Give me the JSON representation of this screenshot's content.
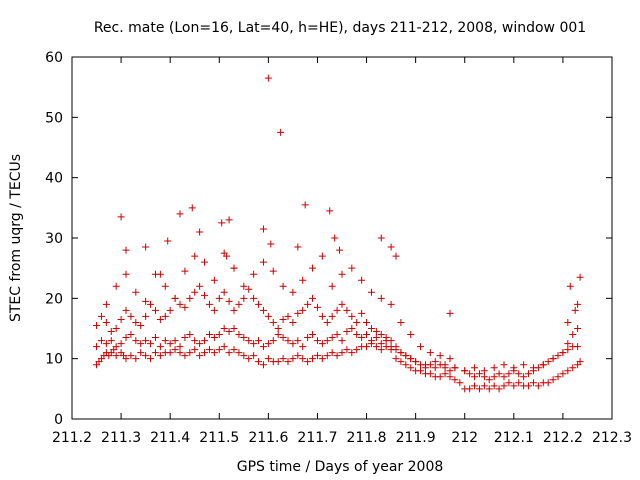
{
  "chart_data": {
    "type": "scatter",
    "title": "Rec. mate (Lon=16, Lat=40, h=HE), days 211-212, 2008, window 001",
    "xlabel": "GPS time / Days of year 2008",
    "ylabel": "STEC from uqrg / TECUs",
    "xlim": [
      211.2,
      212.3
    ],
    "ylim": [
      0,
      60
    ],
    "xticks": [
      "211.2",
      "211.3",
      "211.4",
      "211.5",
      "211.6",
      "211.7",
      "211.8",
      "211.9",
      "212",
      "212.1",
      "212.2",
      "212.3"
    ],
    "yticks": [
      "0",
      "10",
      "20",
      "30",
      "40",
      "50",
      "60"
    ],
    "grid": false,
    "marker": "plus",
    "color": "#cc0000",
    "series": [
      {
        "x": [
          211.25,
          211.255,
          211.26,
          211.265,
          211.27,
          211.275,
          211.28,
          211.285,
          211.29,
          211.3,
          211.305,
          211.31,
          211.32,
          211.33,
          211.34,
          211.35,
          211.36,
          211.37,
          211.38,
          211.39,
          211.4,
          211.41,
          211.42,
          211.43,
          211.44,
          211.45,
          211.46,
          211.47,
          211.48,
          211.49,
          211.5,
          211.51,
          211.52,
          211.53,
          211.54,
          211.55,
          211.56,
          211.57,
          211.58,
          211.59,
          211.6,
          211.61,
          211.62,
          211.63,
          211.64,
          211.65,
          211.66,
          211.67,
          211.68,
          211.69,
          211.7,
          211.71,
          211.72,
          211.73,
          211.74,
          211.75,
          211.76,
          211.77,
          211.78,
          211.79,
          211.8,
          211.81,
          211.82,
          211.83,
          211.84,
          211.85,
          211.86,
          211.87,
          211.88,
          211.89,
          211.9,
          211.91,
          211.92,
          211.93,
          211.94,
          211.95,
          211.96,
          211.97,
          211.98,
          211.99,
          212.0,
          212.01,
          212.02,
          212.03,
          212.04,
          212.05,
          212.06,
          212.07,
          212.08,
          212.09,
          212.1,
          212.11,
          212.12,
          212.13,
          212.14,
          212.15,
          212.16,
          212.17,
          212.18,
          212.19,
          212.2,
          212.21,
          212.22,
          212.23,
          212.235
        ],
        "y": [
          9,
          9.5,
          10,
          10.5,
          11,
          10.5,
          11,
          11.5,
          10.5,
          11,
          10.5,
          10,
          10.5,
          10,
          11,
          10.5,
          10,
          11,
          10.5,
          11,
          11,
          11.5,
          11,
          10.5,
          11,
          11.5,
          10.5,
          11,
          11.5,
          11,
          11.5,
          12,
          11,
          11.5,
          11,
          10.5,
          10,
          10.5,
          9.5,
          9,
          10,
          9.5,
          9.5,
          10,
          9.5,
          10,
          10.5,
          10,
          9.5,
          10,
          10.5,
          10,
          10.5,
          11,
          10.5,
          11,
          11.5,
          11,
          11.5,
          12,
          12,
          12.5,
          12,
          11.5,
          12,
          11.5,
          10,
          9.5,
          9,
          8.5,
          8,
          8,
          7.5,
          7.5,
          7,
          7,
          7.5,
          7,
          6.5,
          6,
          5,
          5,
          5.5,
          5,
          5.5,
          5,
          5.5,
          5,
          5.5,
          6,
          5.5,
          6,
          5.5,
          5.5,
          6,
          5.5,
          6,
          6,
          6.5,
          7,
          7.5,
          8,
          8.5,
          9,
          9.5
        ]
      },
      {
        "x": [
          211.25,
          211.26,
          211.27,
          211.28,
          211.29,
          211.3,
          211.31,
          211.32,
          211.33,
          211.34,
          211.35,
          211.36,
          211.37,
          211.38,
          211.39,
          211.4,
          211.41,
          211.42,
          211.43,
          211.44,
          211.45,
          211.46,
          211.47,
          211.48,
          211.49,
          211.5,
          211.51,
          211.52,
          211.53,
          211.54,
          211.55,
          211.56,
          211.57,
          211.58,
          211.59,
          211.6,
          211.61,
          211.62,
          211.63,
          211.64,
          211.65,
          211.66,
          211.67,
          211.68,
          211.69,
          211.7,
          211.71,
          211.72,
          211.73,
          211.74,
          211.75,
          211.76,
          211.77,
          211.78,
          211.79,
          211.8,
          211.81,
          211.82,
          211.83,
          211.84,
          211.85,
          211.86,
          211.87,
          211.88,
          211.89,
          211.9,
          211.91,
          211.92,
          211.93,
          211.94,
          211.95,
          211.96,
          211.97,
          211.98,
          212.0,
          212.01,
          212.02,
          212.03,
          212.04,
          212.05,
          212.06,
          212.07,
          212.08,
          212.09,
          212.1,
          212.11,
          212.12,
          212.13,
          212.14,
          212.15,
          212.16,
          212.17,
          212.18,
          212.19,
          212.2,
          212.21,
          212.22,
          212.23
        ],
        "y": [
          12,
          13,
          12.5,
          13,
          12,
          12.5,
          13.5,
          14,
          13,
          12.5,
          13,
          12.5,
          13.5,
          12,
          13,
          12.5,
          13,
          12,
          13.5,
          14,
          13,
          12.5,
          13,
          14,
          13.5,
          14,
          15,
          14.5,
          15,
          14,
          13.5,
          13,
          12.5,
          13,
          12,
          12.5,
          13,
          14,
          13.5,
          13,
          12.5,
          13,
          12,
          13.5,
          14,
          13,
          12.5,
          13,
          13.5,
          14,
          13,
          14.5,
          15,
          14,
          13.5,
          14,
          13,
          13.5,
          12.5,
          13,
          12,
          11.5,
          11,
          10.5,
          10,
          9.5,
          9,
          8.5,
          9,
          8.5,
          9,
          8.5,
          8,
          8.5,
          8,
          7.5,
          7,
          7.5,
          7,
          6.5,
          7,
          7.5,
          7,
          7.5,
          8,
          7.5,
          7,
          7.5,
          8,
          8.5,
          9,
          9.5,
          10,
          10.5,
          11,
          11.5,
          12,
          12
        ]
      },
      {
        "x": [
          211.25,
          211.26,
          211.27,
          211.28,
          211.29,
          211.3,
          211.31,
          211.32,
          211.33,
          211.34,
          211.35,
          211.36,
          211.37,
          211.38,
          211.39,
          211.4,
          211.41,
          211.42,
          211.43,
          211.44,
          211.45,
          211.46,
          211.47,
          211.48,
          211.49,
          211.5,
          211.51,
          211.52,
          211.53,
          211.54,
          211.55,
          211.56,
          211.57,
          211.58,
          211.59,
          211.6,
          211.61,
          211.62,
          211.63,
          211.64,
          211.65,
          211.66,
          211.67,
          211.68,
          211.69,
          211.7,
          211.71,
          211.72,
          211.73,
          211.74,
          211.75,
          211.76,
          211.77,
          211.78,
          211.79,
          211.8,
          211.81,
          211.82,
          211.83,
          211.84,
          211.85,
          211.86,
          211.87,
          211.88,
          211.89,
          211.9,
          211.92,
          211.94,
          211.96,
          211.98,
          212.0,
          212.02,
          212.04,
          212.06,
          212.08,
          212.1,
          212.12,
          212.14,
          212.16,
          212.18,
          212.2,
          212.21,
          212.22,
          212.23
        ],
        "y": [
          15.5,
          17,
          16,
          14.5,
          15,
          16.5,
          18,
          17,
          16,
          15.5,
          17,
          19,
          18,
          16.5,
          17,
          18,
          20,
          19,
          18.5,
          20,
          21,
          22,
          20.5,
          19,
          18,
          20,
          21,
          19.5,
          18,
          19,
          20,
          21.5,
          20,
          19,
          18,
          17,
          16,
          15,
          16.5,
          17,
          16,
          17.5,
          18,
          19,
          20,
          18.5,
          17,
          16,
          17,
          18,
          19,
          18,
          17,
          16,
          17.5,
          16,
          15,
          14.5,
          14,
          13.5,
          13,
          12,
          11,
          10.5,
          10,
          9.5,
          9,
          9.5,
          9,
          8.5,
          8,
          8.5,
          8,
          8.5,
          9,
          8.5,
          9,
          8.5,
          9,
          10,
          11,
          12.5,
          14,
          15
        ]
      },
      {
        "x": [
          211.27,
          211.29,
          211.31,
          211.33,
          211.35,
          211.37,
          211.39,
          211.41,
          211.43,
          211.45,
          211.47,
          211.49,
          211.51,
          211.53,
          211.55,
          211.57,
          211.59,
          211.61,
          211.63,
          211.65,
          211.67,
          211.69,
          211.71,
          211.73,
          211.75,
          211.77,
          211.79,
          211.81,
          211.83,
          211.85,
          211.87,
          211.89,
          211.91,
          211.93,
          211.95,
          211.97,
          212.21,
          212.23
        ],
        "y": [
          19,
          22,
          24,
          21,
          19.5,
          24,
          22,
          20,
          24.5,
          27,
          26,
          23,
          27.5,
          25,
          22,
          24,
          26,
          24.5,
          22,
          21,
          23,
          25,
          27,
          22,
          24,
          25,
          23,
          21,
          20,
          19,
          16,
          14,
          12,
          11,
          10.5,
          10,
          16,
          19
        ]
      },
      {
        "x": [
          211.3,
          211.31,
          211.35,
          211.38,
          211.395,
          211.42,
          211.445,
          211.46,
          211.505,
          211.515,
          211.52,
          211.53,
          211.59,
          211.6,
          211.605,
          211.625,
          211.66,
          211.675,
          211.725,
          211.735,
          211.745,
          211.83,
          211.85,
          211.86,
          211.97,
          212.215,
          212.225,
          212.235
        ],
        "y": [
          33.5,
          28,
          28.5,
          24,
          29.5,
          34,
          35,
          31,
          32.5,
          27,
          33,
          25,
          31.5,
          56.5,
          29,
          47.5,
          28.5,
          35.5,
          34.5,
          30,
          28,
          30,
          28.5,
          27,
          17.5,
          22,
          18,
          23.5
        ]
      }
    ]
  }
}
